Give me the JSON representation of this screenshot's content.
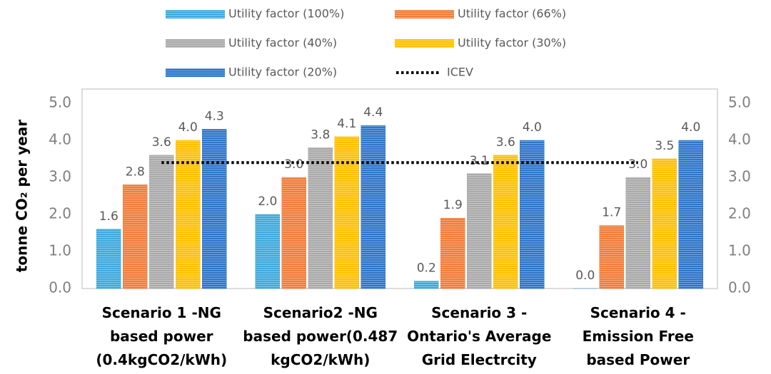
{
  "chart_data": {
    "type": "bar",
    "y_label": "tonne CO₂ per year",
    "categories": [
      "Scenario 1 -NG\nbased power\n(0.4kgCO2/kWh)",
      "Scenario2 -NG\nbased power(0.487\nkgCO2/kWh)",
      "Scenario 3 -\nOntario's Average\nGrid Electrcity",
      "Scenario 4 -\nEmission Free\nbased Power"
    ],
    "series": [
      {
        "name": "Utility factor (100%)",
        "color": "#3fa9dc",
        "values": [
          1.6,
          2.0,
          0.2,
          0.0
        ],
        "value_labels": [
          "1.6",
          "2.0",
          "0.2",
          "0.0"
        ]
      },
      {
        "name": "Utility factor (66%)",
        "color": "#f07c3a",
        "values": [
          2.8,
          3.0,
          1.9,
          1.7
        ],
        "value_labels": [
          "2.8",
          "3.0",
          "1.9",
          "1.7"
        ]
      },
      {
        "name": "Utility factor (40%)",
        "color": "#a9a9a9",
        "values": [
          3.6,
          3.8,
          3.1,
          3.0
        ],
        "value_labels": [
          "3.6",
          "3.8",
          "3.1",
          "3.0"
        ]
      },
      {
        "name": "Utility factor (30%)",
        "color": "#ffc000",
        "values": [
          4.0,
          4.1,
          3.6,
          3.5
        ],
        "value_labels": [
          "4.0",
          "4.1",
          "3.6",
          "3.5"
        ]
      },
      {
        "name": "Utility factor (20%)",
        "color": "#2e75c8",
        "values": [
          4.3,
          4.4,
          4.0,
          4.0
        ],
        "value_labels": [
          "4.3",
          "4.4",
          "4.0",
          "4.0"
        ]
      },
      {
        "name": "ICEV",
        "type": "line",
        "color": "#000000",
        "values": [
          3.4,
          3.4,
          3.4,
          3.4
        ]
      }
    ],
    "ylim": [
      0,
      5
    ],
    "yticks": [
      {
        "value": 0,
        "label": "0.0"
      },
      {
        "value": 1,
        "label": "1.0"
      },
      {
        "value": 2,
        "label": "2.0"
      },
      {
        "value": 3,
        "label": "3.0"
      },
      {
        "value": 4,
        "label": "4.0"
      },
      {
        "value": 5,
        "label": "5.0"
      }
    ],
    "y2lim": [
      0,
      5
    ],
    "y2ticks": [
      {
        "value": 0,
        "label": "0.0"
      },
      {
        "value": 1,
        "label": "1.0"
      },
      {
        "value": 2,
        "label": "2.0"
      },
      {
        "value": 3,
        "label": "3.0"
      },
      {
        "value": 4,
        "label": "4.0"
      },
      {
        "value": 5,
        "label": "5.0"
      }
    ],
    "legend": "top"
  }
}
